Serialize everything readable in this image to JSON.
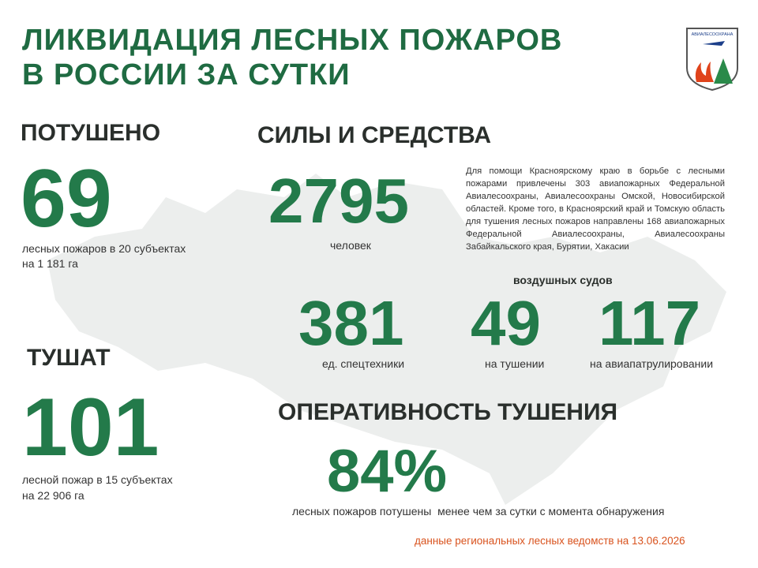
{
  "header": {
    "title_line1": "ЛИКВИДАЦИЯ ЛЕСНЫХ ПОЖАРОВ",
    "title_line2": "В РОССИИ ЗА СУТКИ",
    "logo_text": "АВИАЛЕСООХРАНА"
  },
  "extinguished": {
    "heading": "ПОТУШЕНО",
    "number": "69",
    "caption_line1": "лесных пожаров в 20 субъектах",
    "caption_line2": "на 1 181 га"
  },
  "fighting": {
    "heading": "ТУШАТ",
    "number": "101",
    "caption_line1": "лесной пожар в 15 субъектах",
    "caption_line2": "на 22 906 га"
  },
  "forces": {
    "heading": "СИЛЫ И СРЕДСТВА",
    "people": {
      "number": "2795",
      "caption": "человек"
    },
    "note": "Для помощи Красноярскому краю в борьбе с лесными пожарами привлечены 303 авиапожарных Федеральной Авиалесоохраны, Авиалесоохраны Омской, Новосибирской областей. Кроме того, в Красноярский край и Томскую область для тушения лесных пожаров направлены 168 авиапожарных Федеральной Авиалесоохраны, Авиалесоохраны Забайкальского края, Бурятии, Хакасии",
    "aircraft_heading": "воздушных судов",
    "equipment": {
      "number": "381",
      "caption": "ед. спецтехники"
    },
    "aircraft_fighting": {
      "number": "49",
      "caption": "на тушении"
    },
    "aircraft_patrol": {
      "number": "117",
      "caption": "на авиапатрулировании"
    }
  },
  "efficiency": {
    "heading": "ОПЕРАТИВНОСТЬ ТУШЕНИЯ",
    "number": "84%",
    "caption": "лесных пожаров потушены  менее чем за сутки с момента обнаружения"
  },
  "footer": {
    "source": "данные региональных лесных ведомств на 13.06.2026"
  }
}
